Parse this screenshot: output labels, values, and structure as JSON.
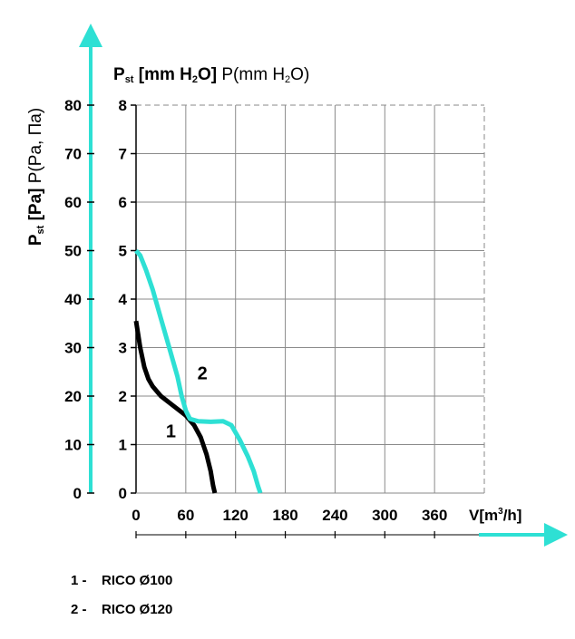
{
  "chart_data": {
    "type": "line",
    "x_axis": {
      "label_main": "V[m",
      "label_sup": "3",
      "label_end": "/h]",
      "ticks": [
        0,
        60,
        120,
        180,
        240,
        300,
        360
      ],
      "range": [
        0,
        420
      ]
    },
    "y_axis_pa": {
      "label_bold_p": "P",
      "label_bold_sub": "st",
      "label_bold_unit": " [Pa]",
      "label_normal": " P(Pa, Па)",
      "ticks": [
        0,
        10,
        20,
        30,
        40,
        50,
        60,
        70,
        80
      ],
      "range": [
        0,
        80
      ]
    },
    "y_axis_mmh2o": {
      "label_bold_p": "P",
      "label_bold_sub": "st",
      "label_bold_unit": " [mm H",
      "label_bold_sub2": "2",
      "label_bold_end": "O]",
      "label_normal": " P(mm H",
      "label_normal_sub": "2",
      "label_normal_end": "O)",
      "ticks": [
        0,
        1,
        2,
        3,
        4,
        5,
        6,
        7,
        8
      ],
      "range": [
        0,
        8
      ]
    },
    "grid": true,
    "series": [
      {
        "name": "1",
        "color": "#000000",
        "x": [
          0,
          5,
          10,
          15,
          20,
          30,
          45,
          60,
          70,
          78,
          85,
          90,
          93,
          95
        ],
        "y": [
          35.5,
          30,
          26,
          23.5,
          22,
          20,
          18,
          16,
          14,
          11.5,
          8,
          4.5,
          1.5,
          0
        ]
      },
      {
        "name": "2",
        "color": "#2ee0d4",
        "x": [
          0,
          5,
          12,
          20,
          30,
          40,
          50,
          55,
          60,
          65,
          75,
          90,
          105,
          115,
          125,
          135,
          142,
          147,
          150
        ],
        "y": [
          50,
          49,
          46,
          42,
          36,
          30,
          24,
          20,
          17,
          15.3,
          14.8,
          14.7,
          14.8,
          14,
          11,
          7.5,
          4.5,
          1.5,
          0
        ]
      }
    ],
    "annotations": [
      {
        "text": "1",
        "x": 42,
        "y": 11.5
      },
      {
        "text": "2",
        "x": 80,
        "y": 23.5
      }
    ]
  },
  "legend": [
    {
      "num": "1 -",
      "label": "RICO Ø100"
    },
    {
      "num": "2 -",
      "label": "RICO Ø120"
    }
  ],
  "colors": {
    "accent": "#2ee0d4",
    "grid": "#8a8a8a",
    "text": "#000000"
  }
}
